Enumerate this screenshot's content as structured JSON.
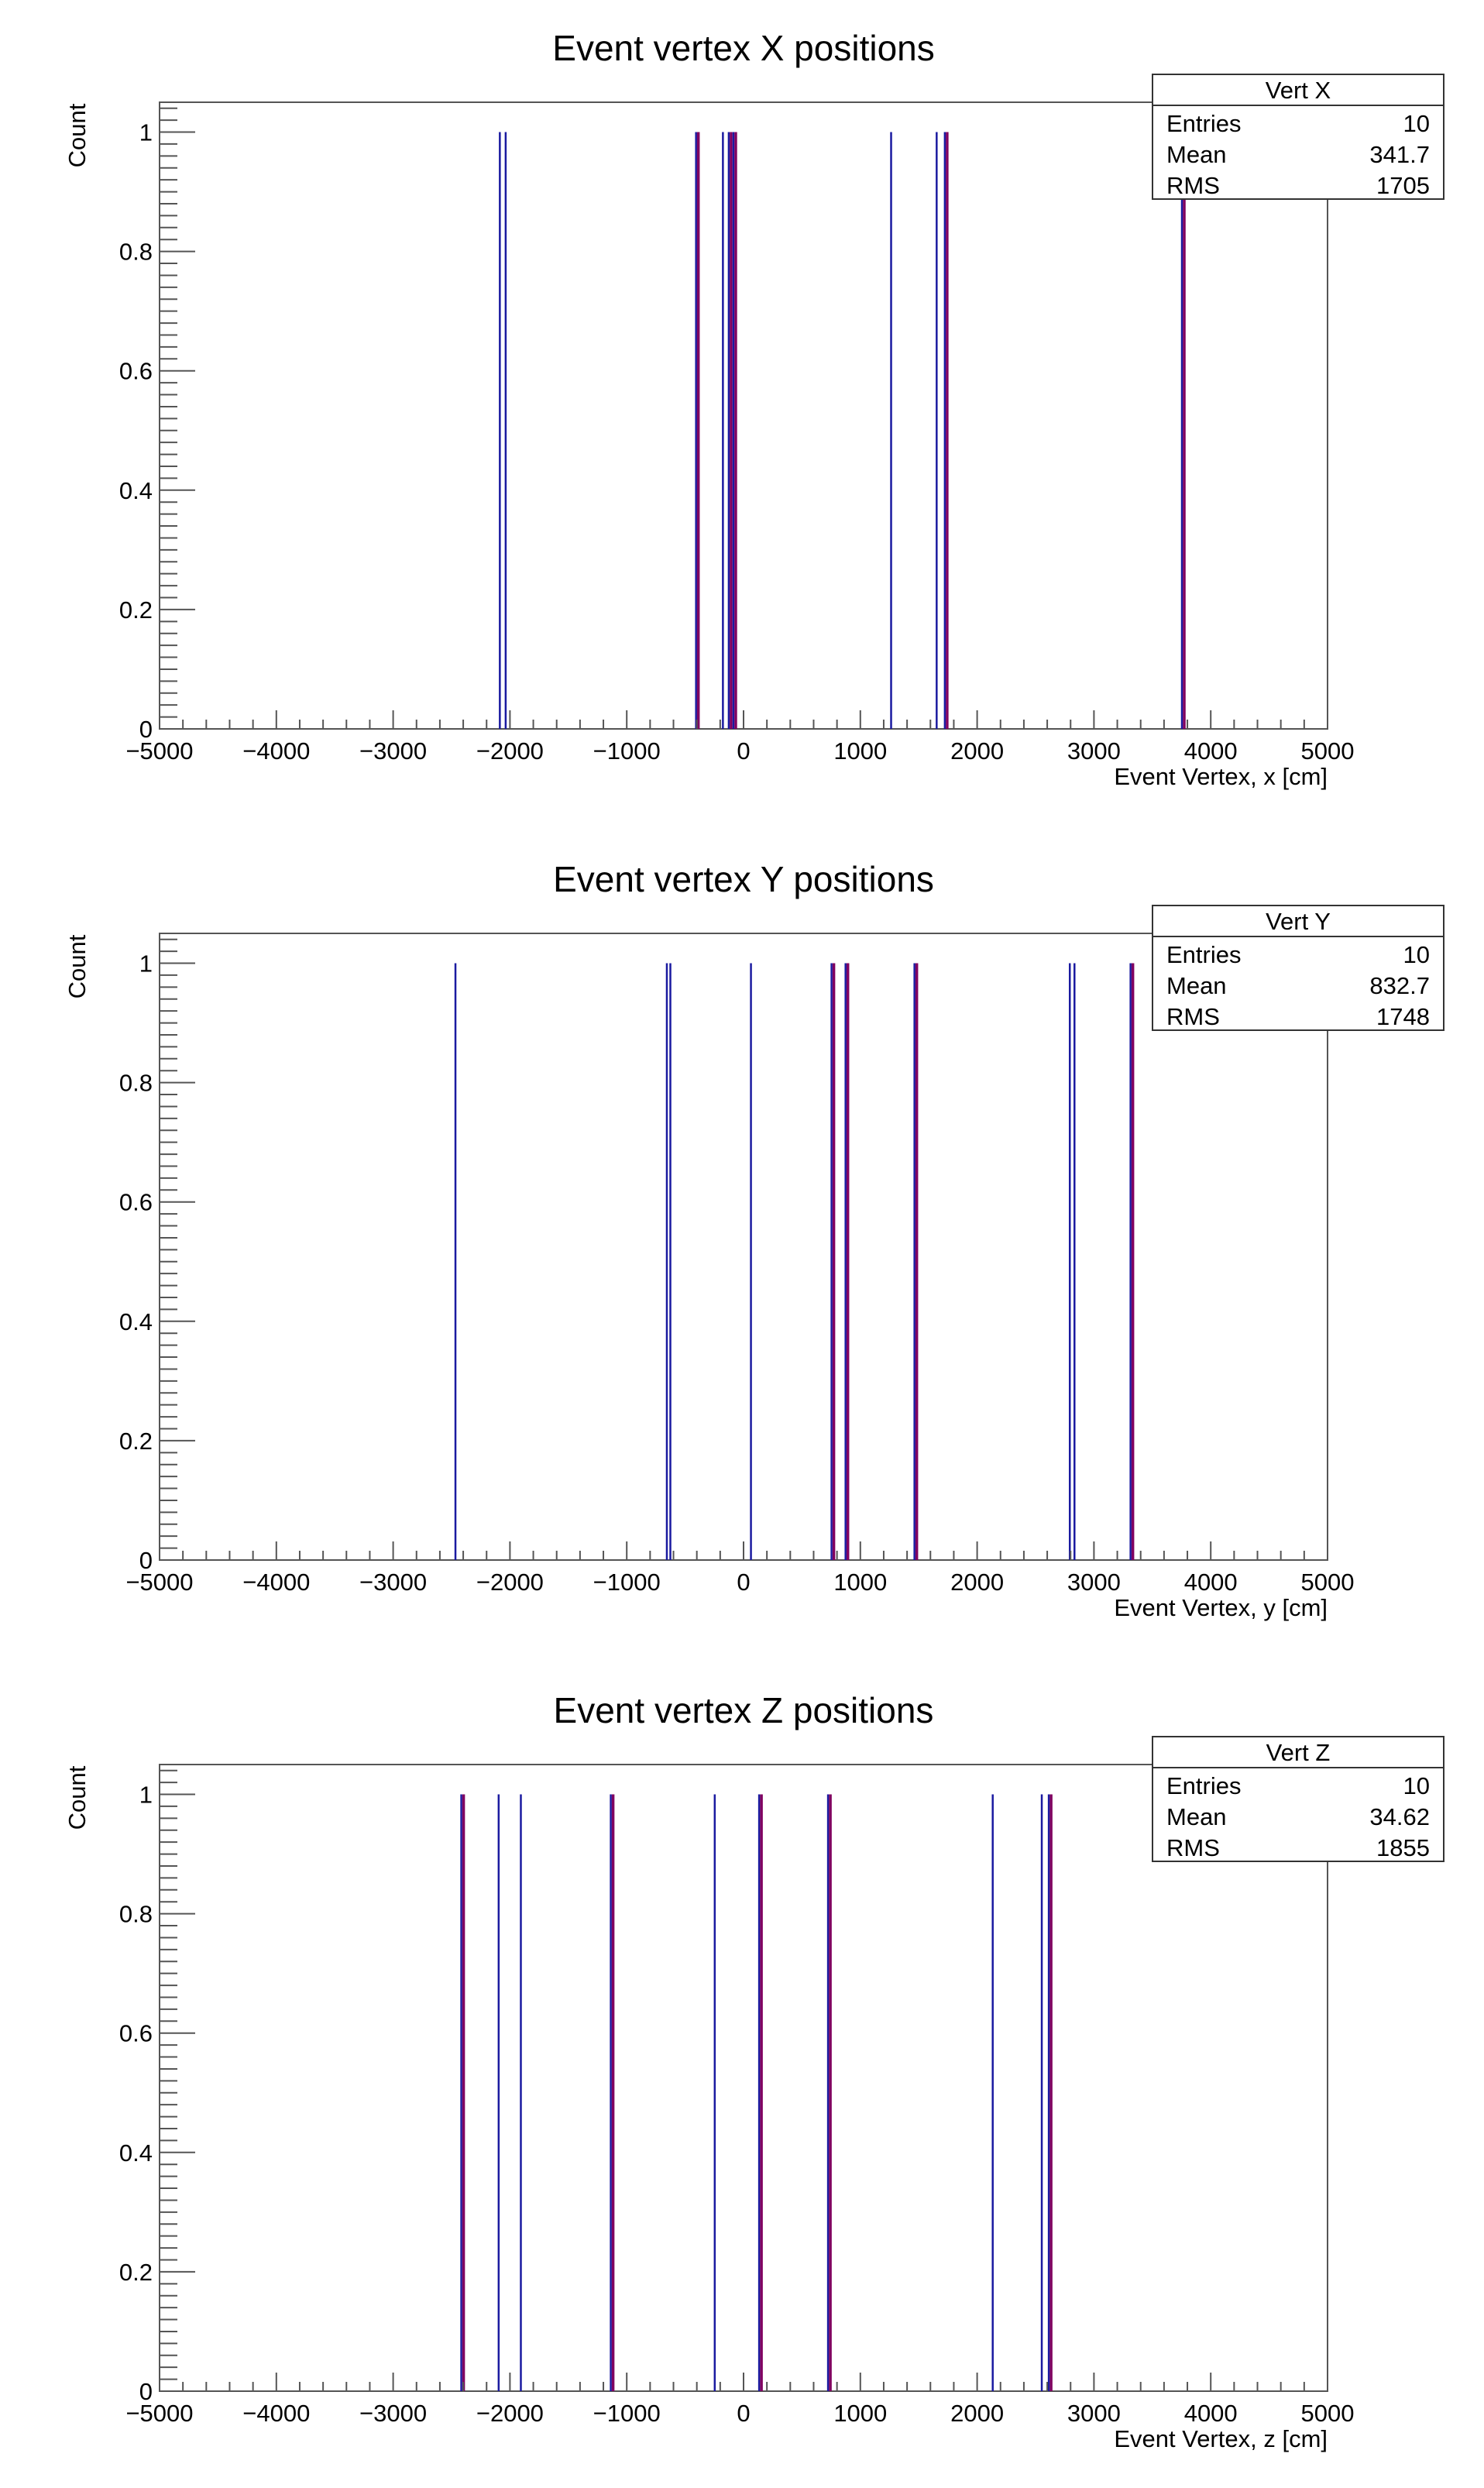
{
  "chart_data": [
    {
      "type": "bar",
      "title": "Event vertex X positions",
      "xlabel": "Event Vertex, x [cm]",
      "ylabel": "Count",
      "xlim": [
        -5000,
        5000
      ],
      "ylim": [
        0,
        1.05
      ],
      "xticks": [
        "−5000",
        "−4000",
        "−3000",
        "−2000",
        "−1000",
        "0",
        "1000",
        "2000",
        "3000",
        "4000",
        "5000"
      ],
      "yticks": [
        "0",
        "0.2",
        "0.4",
        "0.6",
        "0.8",
        "1"
      ],
      "legend": "top-right",
      "stats": {
        "name": "Vert X",
        "entries": "10",
        "mean": "341.7",
        "rms": "1705"
      },
      "x": [
        -2080,
        -2030,
        -400,
        -170,
        -120,
        -80,
        1270,
        1660,
        1730,
        3760
      ],
      "values": [
        1,
        1,
        1,
        1,
        1,
        1,
        1,
        1,
        1,
        1
      ],
      "series": [
        {
          "color": "#1a1aa0",
          "values": [
            1,
            1,
            1,
            1,
            1,
            1,
            1,
            1,
            1,
            1
          ]
        },
        {
          "color": "#800060",
          "values": [
            0,
            0,
            1,
            0,
            1,
            1,
            0,
            0,
            1,
            1
          ]
        }
      ]
    },
    {
      "type": "bar",
      "title": "Event vertex Y positions",
      "xlabel": "Event Vertex, y [cm]",
      "ylabel": "Count",
      "xlim": [
        -5000,
        5000
      ],
      "ylim": [
        0,
        1.05
      ],
      "xticks": [
        "−5000",
        "−4000",
        "−3000",
        "−2000",
        "−1000",
        "0",
        "1000",
        "2000",
        "3000",
        "4000",
        "5000"
      ],
      "yticks": [
        "0",
        "0.2",
        "0.4",
        "0.6",
        "0.8",
        "1"
      ],
      "legend": "top-right",
      "stats": {
        "name": "Vert Y",
        "entries": "10",
        "mean": "832.7",
        "rms": "1748"
      },
      "x": [
        -2460,
        -650,
        -620,
        70,
        760,
        880,
        1470,
        2800,
        2840,
        3320
      ],
      "values": [
        1,
        1,
        1,
        1,
        1,
        1,
        1,
        1,
        1,
        1
      ],
      "series": [
        {
          "color": "#1a1aa0",
          "values": [
            1,
            1,
            1,
            1,
            1,
            1,
            1,
            1,
            1,
            1
          ]
        },
        {
          "color": "#800060",
          "values": [
            0,
            0,
            0,
            0,
            1,
            1,
            1,
            0,
            0,
            1
          ]
        }
      ]
    },
    {
      "type": "bar",
      "title": "Event vertex Z positions",
      "xlabel": "Event Vertex, z [cm]",
      "ylabel": "Count",
      "xlim": [
        -5000,
        5000
      ],
      "ylim": [
        0,
        1.05
      ],
      "xticks": [
        "−5000",
        "−4000",
        "−3000",
        "−2000",
        "−1000",
        "0",
        "1000",
        "2000",
        "3000",
        "4000",
        "5000"
      ],
      "yticks": [
        "0",
        "0.2",
        "0.4",
        "0.6",
        "0.8",
        "1"
      ],
      "legend": "top-right",
      "stats": {
        "name": "Vert Z",
        "entries": "10",
        "mean": "34.62",
        "rms": "1855"
      },
      "x": [
        -2410,
        -2090,
        -1900,
        -1130,
        -240,
        140,
        730,
        2140,
        2560,
        2620
      ],
      "values": [
        1,
        1,
        1,
        1,
        1,
        1,
        1,
        1,
        1,
        1
      ],
      "series": [
        {
          "color": "#1a1aa0",
          "values": [
            1,
            1,
            1,
            1,
            1,
            1,
            1,
            1,
            1,
            1
          ]
        },
        {
          "color": "#800060",
          "values": [
            1,
            0,
            0,
            1,
            0,
            1,
            1,
            0,
            0,
            1
          ]
        }
      ]
    }
  ],
  "stats_labels": {
    "entries": "Entries",
    "mean": "Mean",
    "rms": "RMS"
  }
}
